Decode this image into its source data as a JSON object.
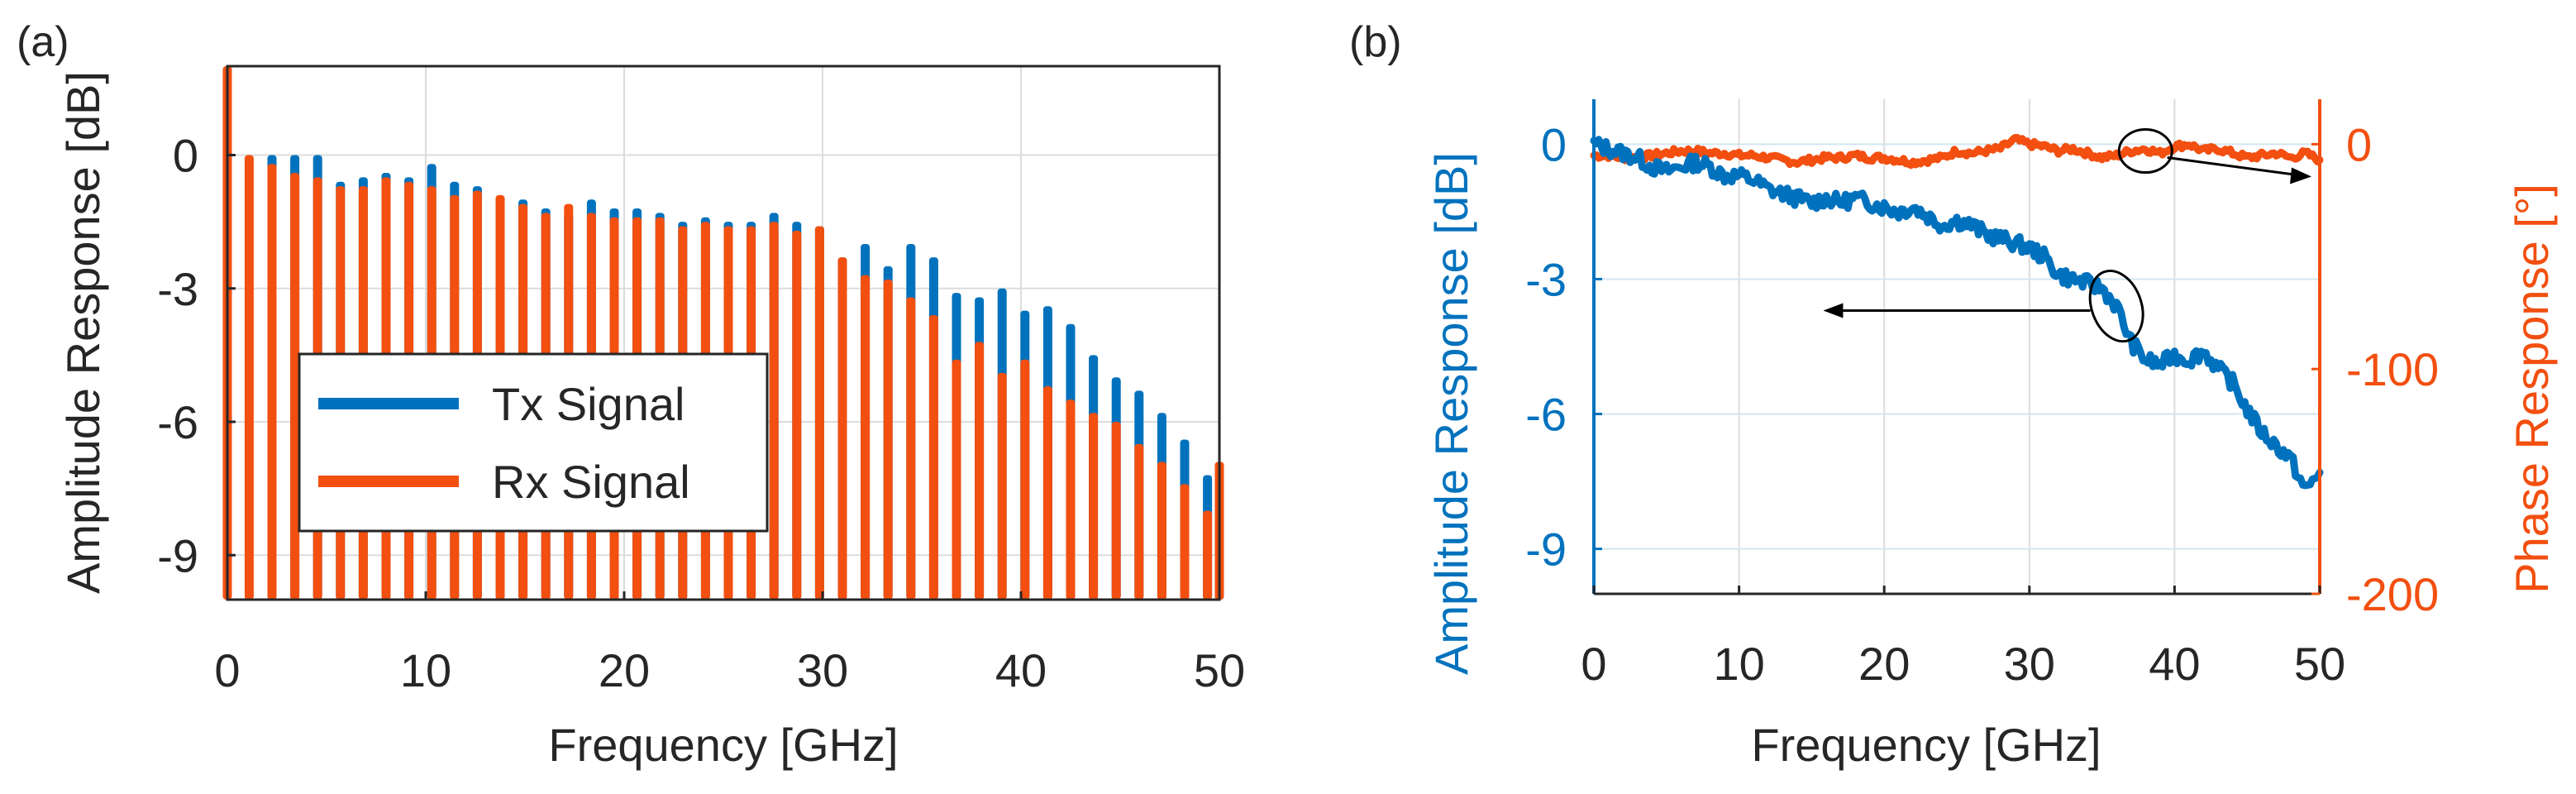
{
  "colors": {
    "tx": "#0072BD",
    "rx": "#F24F10",
    "amp_axis": "#0072BD",
    "phase_axis": "#F24F10",
    "text": "#262626",
    "grid": "#DCDCDC",
    "phase_grid": "#D2E6F0",
    "annotation": "#000000"
  },
  "chart_data": [
    {
      "panel_label": "(a)",
      "type": "bar",
      "title": "",
      "xlabel": "Frequency [GHz]",
      "ylabel": "Amplitude Response [dB]",
      "xlim": [
        0,
        50
      ],
      "ylim": [
        -10,
        2
      ],
      "xticks": [
        0,
        10,
        20,
        30,
        40,
        50
      ],
      "xtick_labels": [
        "0",
        "10",
        "20",
        "30",
        "40",
        "50"
      ],
      "yticks": [
        0,
        -3,
        -6,
        -9
      ],
      "ytick_labels": [
        "0",
        "-3",
        "-6",
        "-9"
      ],
      "grid": true,
      "legend": {
        "placement": "bottom-left",
        "entries": [
          "Tx Signal",
          "Rx Signal"
        ]
      },
      "x": [
        0,
        1.1,
        2.25,
        3.4,
        4.55,
        5.7,
        6.85,
        8.0,
        9.15,
        10.3,
        11.45,
        12.6,
        13.75,
        14.9,
        16.05,
        17.2,
        18.35,
        19.5,
        20.65,
        21.8,
        22.95,
        24.1,
        25.25,
        26.4,
        27.55,
        28.7,
        29.85,
        31.0,
        32.15,
        33.3,
        34.45,
        35.6,
        36.75,
        37.9,
        39.05,
        40.2,
        41.35,
        42.5,
        43.65,
        44.8,
        45.95,
        47.1,
        48.25,
        49.4,
        50.0
      ],
      "series": [
        {
          "name": "Tx Signal",
          "values": [
            null,
            null,
            0,
            0,
            0,
            -0.6,
            -0.5,
            -0.4,
            -0.5,
            -0.2,
            -0.6,
            -0.7,
            -1.2,
            -1.0,
            -1.2,
            -1.3,
            -1.0,
            -1.2,
            -1.2,
            -1.3,
            -1.5,
            -1.4,
            -1.5,
            -1.5,
            -1.3,
            -1.5,
            -1.6,
            -2.3,
            -2.0,
            -2.5,
            -2.0,
            -2.3,
            -3.1,
            -3.2,
            -3.0,
            -3.5,
            -3.4,
            -3.8,
            -4.5,
            -5.0,
            -5.3,
            -5.8,
            -6.4,
            -7.2,
            -8.0
          ]
        },
        {
          "name": "Rx Signal",
          "values": [
            2.0,
            0,
            -0.2,
            -0.4,
            -0.5,
            -0.7,
            -0.7,
            -0.5,
            -0.6,
            -0.7,
            -0.9,
            -0.8,
            -0.9,
            -1.1,
            -1.3,
            -1.1,
            -1.3,
            -1.4,
            -1.4,
            -1.4,
            -1.6,
            -1.5,
            -1.6,
            -1.6,
            -1.5,
            -1.7,
            -1.6,
            -2.3,
            -2.7,
            -2.8,
            -3.2,
            -3.6,
            -4.6,
            -4.2,
            -4.9,
            -4.6,
            -5.2,
            -5.5,
            -5.8,
            -6.0,
            -6.5,
            -6.9,
            -7.4,
            -8.0,
            -6.9
          ]
        }
      ]
    },
    {
      "panel_label": "(b)",
      "type": "line",
      "title": "",
      "xlabel": "Frequency [GHz]",
      "ylabel_left": "Amplitude Response [dB]",
      "ylabel_right": "Phase Response [°]",
      "xlim": [
        0,
        50
      ],
      "ylim_left": [
        -10,
        1
      ],
      "ylim_right": [
        -200,
        20
      ],
      "xticks": [
        0,
        10,
        20,
        30,
        40,
        50
      ],
      "xtick_labels": [
        "0",
        "10",
        "20",
        "30",
        "40",
        "50"
      ],
      "yticks_left": [
        0,
        -3,
        -6,
        -9
      ],
      "ytick_labels_left": [
        "0",
        "-3",
        "-6",
        "-9"
      ],
      "yticks_right": [
        0,
        -100,
        -200
      ],
      "ytick_labels_right": [
        "0",
        "-100",
        "-200"
      ],
      "grid": true,
      "series": [
        {
          "name": "Amplitude Response",
          "axis": "left",
          "x": [
            0,
            1,
            2,
            3,
            4,
            5,
            6,
            7,
            8,
            9,
            10,
            11,
            12,
            13,
            14,
            15,
            16,
            17,
            18,
            19,
            20,
            21,
            22,
            23,
            24,
            25,
            26,
            27,
            28,
            29,
            30,
            31,
            32,
            33,
            34,
            35,
            36,
            37,
            38,
            39,
            40,
            41,
            42,
            43,
            44,
            45,
            46,
            47,
            48,
            49,
            50
          ],
          "values": [
            0.0,
            -0.1,
            -0.2,
            -0.3,
            -0.5,
            -0.6,
            -0.5,
            -0.4,
            -0.5,
            -0.7,
            -0.7,
            -0.8,
            -1.0,
            -1.1,
            -1.2,
            -1.3,
            -1.2,
            -1.3,
            -1.2,
            -1.3,
            -1.4,
            -1.5,
            -1.4,
            -1.6,
            -1.8,
            -1.7,
            -1.8,
            -2.0,
            -2.1,
            -2.2,
            -2.3,
            -2.5,
            -2.9,
            -3.0,
            -3.1,
            -3.2,
            -3.6,
            -4.4,
            -4.8,
            -4.9,
            -4.7,
            -4.8,
            -4.6,
            -5.0,
            -5.3,
            -5.9,
            -6.4,
            -6.7,
            -7.0,
            -7.7,
            -7.3
          ]
        },
        {
          "name": "Phase Response",
          "axis": "right",
          "x": [
            0,
            1,
            2,
            3,
            4,
            5,
            6,
            7,
            8,
            9,
            10,
            11,
            12,
            13,
            14,
            15,
            16,
            17,
            18,
            19,
            20,
            21,
            22,
            23,
            24,
            25,
            26,
            27,
            28,
            29,
            30,
            31,
            32,
            33,
            34,
            35,
            36,
            37,
            38,
            39,
            40,
            41,
            42,
            43,
            44,
            45,
            46,
            47,
            48,
            49,
            50
          ],
          "values": [
            -5,
            -5,
            -6,
            -6,
            -5,
            -4,
            -3,
            -3,
            -4,
            -4,
            -5,
            -5,
            -6,
            -7,
            -8,
            -7,
            -6,
            -6,
            -5,
            -6,
            -6,
            -7,
            -8,
            -7,
            -6,
            -3,
            -4,
            -3,
            -2,
            2,
            0,
            -1,
            -3,
            -2,
            -4,
            -6,
            -5,
            -3,
            -2,
            -4,
            -1,
            0,
            -3,
            -2,
            -4,
            -6,
            -5,
            -4,
            -6,
            -4,
            -7
          ]
        }
      ],
      "annotations": [
        {
          "type": "ellipse-arrow",
          "near_x": 38,
          "target": "right-axis"
        },
        {
          "type": "ellipse-arrow",
          "near_x": 35,
          "target": "left-axis"
        }
      ]
    }
  ]
}
